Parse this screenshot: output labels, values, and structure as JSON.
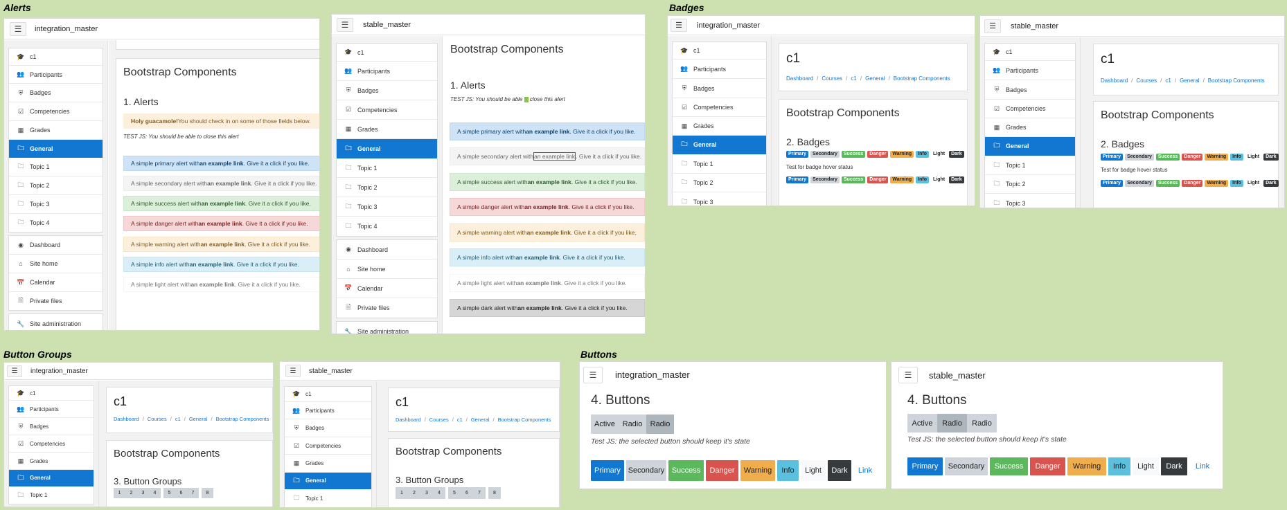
{
  "sections": {
    "alerts": "Alerts",
    "badges": "Badges",
    "button_groups": "Button Groups",
    "buttons": "Buttons"
  },
  "branches": {
    "integration": "integration_master",
    "stable": "stable_master"
  },
  "nav": {
    "course": "c1",
    "participants": "Participants",
    "badges": "Badges",
    "competencies": "Competencies",
    "grades": "Grades",
    "general": "General",
    "topic1": "Topic 1",
    "topic2": "Topic 2",
    "topic3": "Topic 3",
    "topic4": "Topic 4",
    "dashboard": "Dashboard",
    "site_home": "Site home",
    "calendar": "Calendar",
    "private_files": "Private files",
    "site_admin": "Site administration"
  },
  "icons": {
    "menu": "hamburger-icon",
    "course": "graduation-cap-icon",
    "participants": "users-icon",
    "badges": "shield-icon",
    "competencies": "check-square-icon",
    "grades": "table-icon",
    "folder": "folder-icon",
    "dashboard": "dashboard-icon",
    "home": "home-icon",
    "calendar": "calendar-icon",
    "file": "file-icon",
    "wrench": "wrench-icon"
  },
  "page": {
    "course_title": "c1",
    "breadcrumbs": [
      "Dashboard",
      "Courses",
      "c1",
      "General",
      "Bootstrap Components"
    ],
    "component_title": "Bootstrap Components"
  },
  "alerts": {
    "heading": "1. Alerts",
    "holy_bold": "Holy guacamole!",
    "holy_text": " You should check in on some of those fields below.",
    "testjs_int": "TEST JS: You should be able to close this alert",
    "testjs_stable_pre": "TEST JS: You should be able ",
    "testjs_stable_post": " close this alert",
    "link_text": "an example link",
    "tail": ". Give it a click if you like.",
    "items": [
      {
        "pre": "A simple primary alert with "
      },
      {
        "pre": "A simple secondary alert with "
      },
      {
        "pre": "A simple success alert with "
      },
      {
        "pre": "A simple danger alert with "
      },
      {
        "pre": "A simple warning alert with "
      },
      {
        "pre": "A simple info alert with "
      },
      {
        "pre": "A simple light alert with "
      },
      {
        "pre": "A simple dark alert with "
      }
    ]
  },
  "badges": {
    "heading": "2. Badges",
    "labels": [
      "Primary",
      "Secondary",
      "Success",
      "Danger",
      "Warning",
      "Info",
      "Light",
      "Dark"
    ],
    "hover_text": "Test for badge hover status"
  },
  "button_groups": {
    "heading": "3. Button Groups",
    "group1": [
      "1",
      "2",
      "3",
      "4"
    ],
    "group2": [
      "5",
      "6",
      "7"
    ],
    "group3": [
      "8"
    ]
  },
  "buttons": {
    "heading": "4. Buttons",
    "toggle": [
      "Active",
      "Radio",
      "Radio"
    ],
    "testjs": "Test JS: the selected button should keep it's state",
    "labels": [
      "Primary",
      "Secondary",
      "Success",
      "Danger",
      "Warning",
      "Info",
      "Light",
      "Dark",
      "Link"
    ]
  },
  "colors": {
    "brand": "#1177d1",
    "background": "#cde0b0"
  }
}
